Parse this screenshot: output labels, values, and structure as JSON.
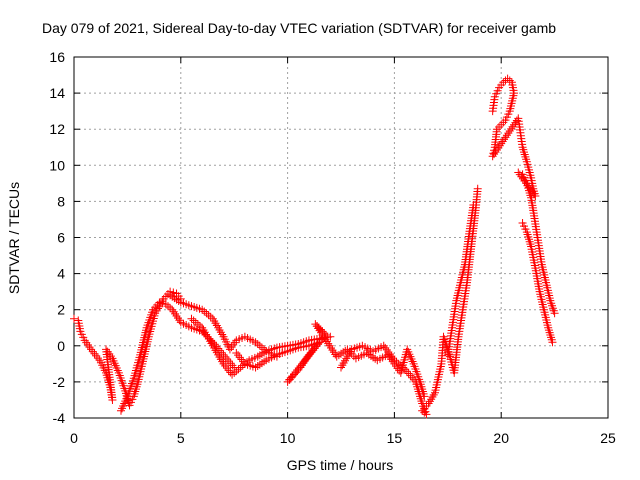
{
  "chart_data": {
    "type": "scatter",
    "title": "Day 079 of 2021, Sidereal Day-to-day VTEC variation (SDTVAR) for receiver gamb",
    "xlabel": "GPS time / hours",
    "ylabel": "SDTVAR / TECUs",
    "xlim": [
      0,
      25
    ],
    "ylim": [
      -4,
      16
    ],
    "x_ticks": [
      0,
      5,
      10,
      15,
      20,
      25
    ],
    "y_ticks": [
      -4,
      -2,
      0,
      2,
      4,
      6,
      8,
      10,
      12,
      14,
      16
    ],
    "grid": true,
    "marker": "+",
    "series": [
      {
        "name": "SDTVAR",
        "color": "#ff0000",
        "points": [
          [
            0.0,
            1.5
          ],
          [
            0.2,
            1.4
          ],
          [
            0.3,
            0.8
          ],
          [
            0.5,
            0.3
          ],
          [
            0.8,
            -0.2
          ],
          [
            1.2,
            -0.8
          ],
          [
            1.5,
            -1.5
          ],
          [
            1.7,
            -2.3
          ],
          [
            1.8,
            -3.0
          ],
          [
            1.5,
            -0.2
          ],
          [
            1.8,
            -0.7
          ],
          [
            2.1,
            -1.5
          ],
          [
            2.4,
            -2.5
          ],
          [
            2.6,
            -3.3
          ],
          [
            2.8,
            -2.8
          ],
          [
            3.0,
            -2.0
          ],
          [
            3.2,
            -1.0
          ],
          [
            3.5,
            0.5
          ],
          [
            3.8,
            1.8
          ],
          [
            4.2,
            2.6
          ],
          [
            4.5,
            3.0
          ],
          [
            4.8,
            2.9
          ],
          [
            5.0,
            2.6
          ],
          [
            2.2,
            -3.6
          ],
          [
            2.5,
            -2.8
          ],
          [
            2.8,
            -1.8
          ],
          [
            3.1,
            -0.5
          ],
          [
            3.4,
            1.0
          ],
          [
            3.7,
            2.0
          ],
          [
            4.0,
            2.4
          ],
          [
            4.3,
            2.3
          ],
          [
            4.6,
            2.0
          ],
          [
            5.0,
            1.3
          ],
          [
            5.5,
            1.0
          ],
          [
            6.0,
            0.8
          ],
          [
            6.5,
            0.2
          ],
          [
            7.0,
            -0.5
          ],
          [
            7.5,
            -1.2
          ],
          [
            4.5,
            2.8
          ],
          [
            5.0,
            2.4
          ],
          [
            5.5,
            2.2
          ],
          [
            6.0,
            2.0
          ],
          [
            6.5,
            1.5
          ],
          [
            7.0,
            0.5
          ],
          [
            7.3,
            -0.2
          ],
          [
            7.6,
            0.3
          ],
          [
            8.0,
            0.5
          ],
          [
            8.5,
            0.2
          ],
          [
            9.0,
            -0.3
          ],
          [
            9.5,
            -0.6
          ],
          [
            5.5,
            1.5
          ],
          [
            6.0,
            1.0
          ],
          [
            6.5,
            0.0
          ],
          [
            7.0,
            -1.0
          ],
          [
            7.4,
            -1.6
          ],
          [
            7.8,
            -1.2
          ],
          [
            8.2,
            -0.8
          ],
          [
            8.6,
            -0.6
          ],
          [
            9.0,
            -0.3
          ],
          [
            9.5,
            -0.1
          ],
          [
            10.0,
            0.0
          ],
          [
            10.5,
            0.1
          ],
          [
            11.0,
            0.3
          ],
          [
            11.5,
            0.4
          ],
          [
            12.0,
            0.5
          ],
          [
            7.6,
            -0.4
          ],
          [
            8.0,
            -1.0
          ],
          [
            8.5,
            -1.2
          ],
          [
            9.0,
            -0.8
          ],
          [
            9.5,
            -0.5
          ],
          [
            10.0,
            -0.3
          ],
          [
            10.5,
            -0.1
          ],
          [
            11.0,
            0.0
          ],
          [
            11.5,
            0.2
          ],
          [
            10.0,
            -2.0
          ],
          [
            10.3,
            -1.6
          ],
          [
            10.6,
            -1.2
          ],
          [
            11.0,
            -0.5
          ],
          [
            11.5,
            0.2
          ],
          [
            11.8,
            0.6
          ],
          [
            11.3,
            1.2
          ],
          [
            12.3,
            -0.6
          ],
          [
            12.8,
            -0.2
          ],
          [
            13.2,
            -0.7
          ],
          [
            13.7,
            -0.4
          ],
          [
            14.2,
            -0.8
          ],
          [
            14.7,
            -0.5
          ],
          [
            15.0,
            -1.0
          ],
          [
            15.3,
            -1.5
          ],
          [
            15.6,
            -0.2
          ],
          [
            15.9,
            -1.0
          ],
          [
            16.2,
            -2.0
          ],
          [
            16.4,
            -2.8
          ],
          [
            12.5,
            -1.2
          ],
          [
            13.0,
            -0.2
          ],
          [
            13.5,
            0.0
          ],
          [
            14.0,
            -0.3
          ],
          [
            14.5,
            0.0
          ],
          [
            15.0,
            -0.8
          ],
          [
            15.5,
            -1.3
          ],
          [
            16.0,
            -2.0
          ],
          [
            16.3,
            -3.2
          ],
          [
            16.5,
            -3.8
          ],
          [
            16.3,
            -3.6
          ],
          [
            16.6,
            -3.2
          ],
          [
            16.9,
            -2.6
          ],
          [
            17.2,
            -1.0
          ],
          [
            17.3,
            0.5
          ],
          [
            17.6,
            -0.6
          ],
          [
            17.8,
            -1.5
          ],
          [
            18.0,
            0.5
          ],
          [
            18.2,
            2.0
          ],
          [
            18.4,
            3.5
          ],
          [
            18.6,
            5.5
          ],
          [
            18.8,
            7.5
          ],
          [
            18.9,
            8.7
          ],
          [
            17.5,
            -0.5
          ],
          [
            17.7,
            1.0
          ],
          [
            17.9,
            2.5
          ],
          [
            18.1,
            3.5
          ],
          [
            18.3,
            4.5
          ],
          [
            18.5,
            6.2
          ],
          [
            18.7,
            7.8
          ],
          [
            19.6,
            13.0
          ],
          [
            19.7,
            13.8
          ],
          [
            19.9,
            14.3
          ],
          [
            20.1,
            14.6
          ],
          [
            20.3,
            14.8
          ],
          [
            20.5,
            14.6
          ],
          [
            20.6,
            14.0
          ],
          [
            20.4,
            13.0
          ],
          [
            20.2,
            12.5
          ],
          [
            19.8,
            12.0
          ],
          [
            19.7,
            11.0
          ],
          [
            19.6,
            10.5
          ],
          [
            20.8,
            12.6
          ],
          [
            20.9,
            11.8
          ],
          [
            21.0,
            11.0
          ],
          [
            21.2,
            10.2
          ],
          [
            21.4,
            9.3
          ],
          [
            21.5,
            8.7
          ],
          [
            21.6,
            8.3
          ],
          [
            20.8,
            9.6
          ],
          [
            21.0,
            9.5
          ],
          [
            21.2,
            9.0
          ],
          [
            21.4,
            8.2
          ],
          [
            21.5,
            7.5
          ],
          [
            21.7,
            6.0
          ],
          [
            21.9,
            4.5
          ],
          [
            22.1,
            3.5
          ],
          [
            22.3,
            2.5
          ],
          [
            22.5,
            1.8
          ],
          [
            21.0,
            6.8
          ],
          [
            21.2,
            6.3
          ],
          [
            21.4,
            5.5
          ],
          [
            21.6,
            4.3
          ],
          [
            21.8,
            3.0
          ],
          [
            22.0,
            2.0
          ],
          [
            22.2,
            1.0
          ],
          [
            22.4,
            0.2
          ]
        ]
      }
    ]
  }
}
